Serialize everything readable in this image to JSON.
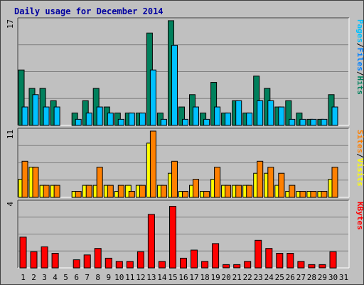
{
  "chart_data": {
    "type": "bar",
    "title": "Daily usage for December 2014",
    "categories": [
      "1",
      "2",
      "3",
      "4",
      "5",
      "6",
      "7",
      "8",
      "9",
      "10",
      "11",
      "12",
      "13",
      "14",
      "15",
      "16",
      "17",
      "18",
      "19",
      "20",
      "21",
      "22",
      "23",
      "24",
      "25",
      "26",
      "27",
      "28",
      "29",
      "30",
      "31"
    ],
    "weekend_days": [
      "6",
      "7",
      "13",
      "14",
      "20",
      "21",
      "27",
      "28"
    ],
    "weekend_color": "#00805c",
    "panels": [
      {
        "id": "hits-files-pages",
        "ymax": 17,
        "ymax_label": "17",
        "right_labels": [
          {
            "text": "Pages",
            "color": "#00c0ff"
          },
          {
            "text": "/",
            "color": "#000000"
          },
          {
            "text": "Files",
            "color": "#0080ff"
          },
          {
            "text": "/",
            "color": "#000000"
          },
          {
            "text": "Hits",
            "color": "#00805c"
          }
        ],
        "series": [
          {
            "name": "Hits",
            "color": "#00805c",
            "values": [
              9,
              6,
              6,
              4,
              0,
              2,
              4,
              6,
              3,
              2,
              2,
              2,
              15,
              2,
              17,
              3,
              5,
              2,
              7,
              2,
              4,
              2,
              8,
              6,
              3,
              4,
              2,
              1,
              1,
              5,
              0
            ]
          },
          {
            "name": "Pages",
            "color": "#00c0ff",
            "values": [
              3,
              5,
              3,
              3,
              0,
              1,
              2,
              3,
              2,
              1,
              2,
              2,
              9,
              1,
              13,
              1,
              3,
              1,
              3,
              2,
              4,
              2,
              4,
              4,
              3,
              1,
              1,
              1,
              1,
              3,
              0
            ]
          }
        ]
      },
      {
        "id": "visits-sites",
        "ymax": 11,
        "ymax_label": "11",
        "right_labels": [
          {
            "text": "Sites",
            "color": "#ff8000"
          },
          {
            "text": "/",
            "color": "#000000"
          },
          {
            "text": "Visits",
            "color": "#ffff00"
          }
        ],
        "series": [
          {
            "name": "Visits",
            "color": "#ffff00",
            "values": [
              3,
              5,
              2,
              2,
              0,
              1,
              2,
              2,
              2,
              1,
              2,
              2,
              9,
              2,
              4,
              1,
              2,
              1,
              3,
              2,
              2,
              2,
              4,
              4,
              2,
              1,
              1,
              1,
              1,
              3,
              0
            ]
          },
          {
            "name": "Sites",
            "color": "#ff8000",
            "values": [
              6,
              5,
              2,
              2,
              0,
              1,
              2,
              5,
              2,
              2,
              1,
              2,
              11,
              2,
              6,
              1,
              3,
              1,
              5,
              2,
              2,
              2,
              6,
              5,
              4,
              2,
              1,
              1,
              1,
              5,
              0
            ]
          }
        ]
      },
      {
        "id": "kbytes",
        "ymax": 4,
        "ymax_label": "4",
        "right_labels": [
          {
            "text": "KBytes",
            "color": "#ff0000"
          }
        ],
        "series": [
          {
            "name": "KBytes",
            "color": "#ff0000",
            "values": [
              1.9,
              1.0,
              1.3,
              0.9,
              0,
              0.5,
              0.8,
              1.2,
              0.6,
              0.4,
              0.4,
              1.0,
              3.3,
              0.4,
              3.8,
              0.6,
              1.1,
              0.4,
              1.5,
              0.2,
              0.2,
              0.4,
              1.7,
              1.2,
              0.9,
              0.9,
              0.4,
              0.2,
              0.2,
              1.0,
              0
            ]
          }
        ]
      }
    ],
    "grid": true
  }
}
